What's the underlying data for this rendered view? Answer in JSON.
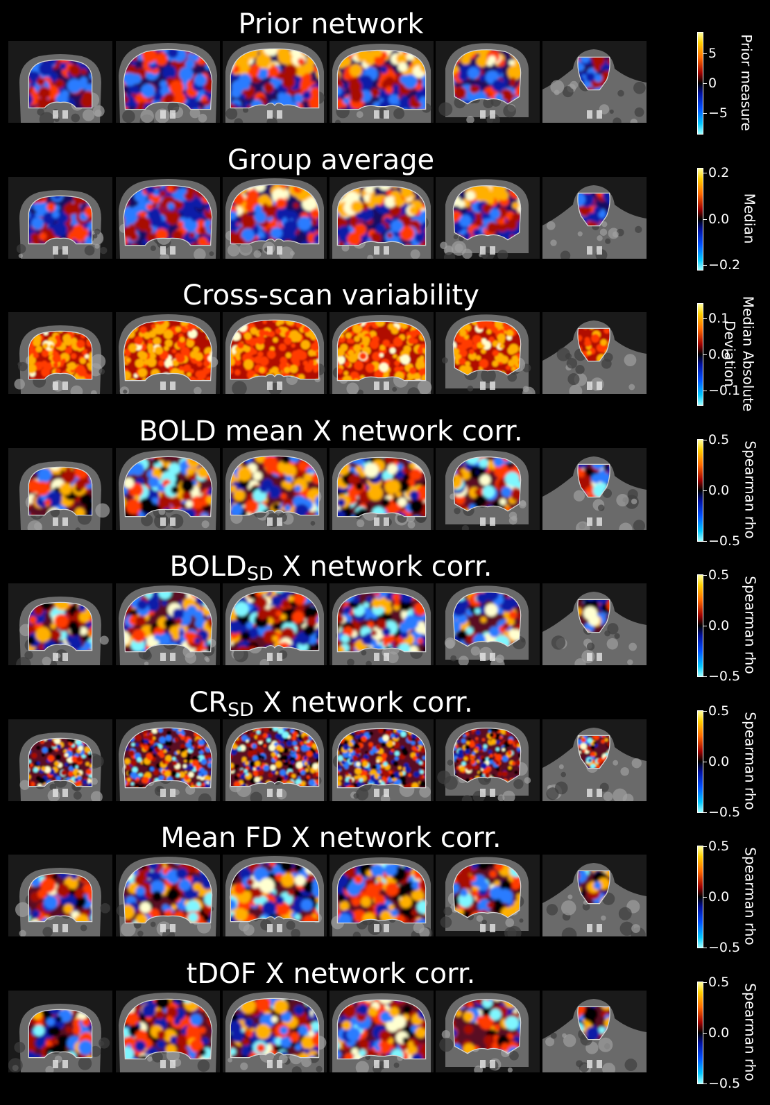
{
  "figure": {
    "colormap": "cold-hot (cyan-blue-black-red-yellow)",
    "rows": [
      {
        "title": "Prior network",
        "sub": "",
        "title_rest": "",
        "style": "prior",
        "colorbar": {
          "label": [
            "Prior measure"
          ],
          "ticks": [
            "5",
            "0",
            "−5"
          ],
          "tick_values": [
            5,
            0,
            -5
          ],
          "range": [
            -8.5,
            8.5
          ]
        }
      },
      {
        "title": "Group average",
        "sub": "",
        "title_rest": "",
        "style": "group",
        "colorbar": {
          "label": [
            "Median"
          ],
          "ticks": [
            "0.2",
            "0.0",
            "−0.2"
          ],
          "tick_values": [
            0.2,
            0.0,
            -0.2
          ],
          "range": [
            -0.22,
            0.22
          ]
        }
      },
      {
        "title": "Cross-scan variability",
        "sub": "",
        "title_rest": "",
        "style": "variability",
        "colorbar": {
          "label": [
            "Median Absolute",
            "Deviation"
          ],
          "ticks": [
            "0.1",
            "0.0",
            "−0.1"
          ],
          "tick_values": [
            0.1,
            0.0,
            -0.1
          ],
          "range": [
            -0.14,
            0.14
          ]
        }
      },
      {
        "title": "BOLD mean X network corr.",
        "sub": "",
        "title_rest": "",
        "style": "corr",
        "colorbar": {
          "label": [
            "Spearman rho"
          ],
          "ticks": [
            "0.5",
            "0.0",
            "−0.5"
          ],
          "tick_values": [
            0.5,
            0.0,
            -0.5
          ],
          "range": [
            -0.5,
            0.5
          ]
        }
      },
      {
        "title": "BOLD",
        "sub": "SD",
        "title_rest": " X network corr.",
        "style": "corr",
        "colorbar": {
          "label": [
            "Spearman rho"
          ],
          "ticks": [
            "0.5",
            "0.0",
            "−0.5"
          ],
          "tick_values": [
            0.5,
            0.0,
            -0.5
          ],
          "range": [
            -0.5,
            0.5
          ]
        }
      },
      {
        "title": "CR",
        "sub": "SD",
        "title_rest": " X network corr.",
        "style": "corrfine",
        "colorbar": {
          "label": [
            "Spearman rho"
          ],
          "ticks": [
            "0.5",
            "0.0",
            "−0.5"
          ],
          "tick_values": [
            0.5,
            0.0,
            -0.5
          ],
          "range": [
            -0.5,
            0.5
          ]
        }
      },
      {
        "title": "Mean FD X network corr.",
        "sub": "",
        "title_rest": "",
        "style": "corr",
        "colorbar": {
          "label": [
            "Spearman rho"
          ],
          "ticks": [
            "0.5",
            "0.0",
            "−0.5"
          ],
          "tick_values": [
            0.5,
            0.0,
            -0.5
          ],
          "range": [
            -0.5,
            0.5
          ]
        }
      },
      {
        "title": "tDOF X network corr.",
        "sub": "",
        "title_rest": "",
        "style": "corr",
        "colorbar": {
          "label": [
            "Spearman rho"
          ],
          "ticks": [
            "0.5",
            "0.0",
            "−0.5"
          ],
          "tick_values": [
            0.5,
            0.0,
            -0.5
          ],
          "range": [
            -0.5,
            0.5
          ]
        }
      }
    ]
  }
}
